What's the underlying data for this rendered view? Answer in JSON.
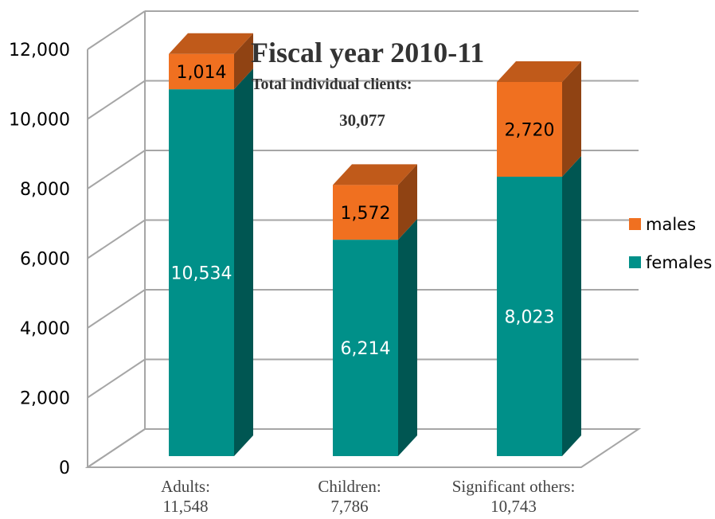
{
  "chart_data": {
    "type": "bar",
    "stacked": true,
    "three_d": true,
    "title": "Fiscal year 2010-11",
    "subtitle": "Total individual clients:",
    "total_label": "30,077",
    "categories": [
      "Adults:",
      "Children:",
      "Significant others:"
    ],
    "category_totals": [
      "11,548",
      "7,786",
      "10,743"
    ],
    "series": [
      {
        "name": "females",
        "values": [
          10534,
          6214,
          8023
        ],
        "labels": [
          "10,534",
          "6,214",
          "8,023"
        ],
        "color": "#009089"
      },
      {
        "name": "males",
        "values": [
          1014,
          1572,
          2720
        ],
        "labels": [
          "1,014",
          "1,572",
          "2,720"
        ],
        "color": "#f07020"
      }
    ],
    "ylim": [
      0,
      12000
    ],
    "yticks": [
      0,
      2000,
      4000,
      6000,
      8000,
      10000,
      12000
    ],
    "ytick_labels": [
      "0",
      "2,000",
      "4,000",
      "6,000",
      "8,000",
      "10,000",
      "12,000"
    ],
    "grid": true,
    "legend_position": "right"
  }
}
